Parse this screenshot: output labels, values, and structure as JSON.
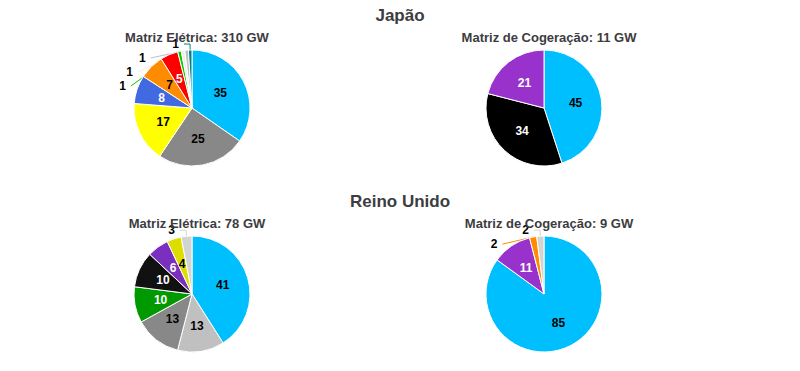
{
  "chart_data": [
    {
      "type": "pie",
      "title": "Matriz Elétrica: 310 GW",
      "annotations": [
        "Japão"
      ],
      "values": [
        35,
        25,
        17,
        8,
        7,
        5,
        1,
        1,
        1,
        1
      ],
      "colors": [
        "#00BFFF",
        "#888888",
        "#FFFF00",
        "#4169E1",
        "#FF8C00",
        "#FF0000",
        "#00CC00",
        "#EEEEEE",
        "#C0C0C0",
        "#008080"
      ],
      "data_labels": true
    },
    {
      "type": "pie",
      "title": "Matriz de Cogeração: 11 GW",
      "values": [
        45,
        34,
        21
      ],
      "colors": [
        "#00BFFF",
        "#000000",
        "#9932CC"
      ],
      "data_labels": true
    },
    {
      "type": "pie",
      "title": "Matriz Elétrica: 78 GW",
      "annotations": [
        "Reino Unido"
      ],
      "values": [
        41,
        13,
        13,
        10,
        10,
        6,
        4,
        3
      ],
      "colors": [
        "#00BFFF",
        "#C0C0C0",
        "#888888",
        "#009900",
        "#111111",
        "#7B2FBE",
        "#DDDD00",
        "#D3D3D3"
      ],
      "data_labels": true
    },
    {
      "type": "pie",
      "title": "Matriz de Cogeração: 9 GW",
      "values": [
        85,
        11,
        2,
        2
      ],
      "colors": [
        "#00BFFF",
        "#9932CC",
        "#FF8C00",
        "#D3D3D3"
      ],
      "data_labels": true
    }
  ]
}
